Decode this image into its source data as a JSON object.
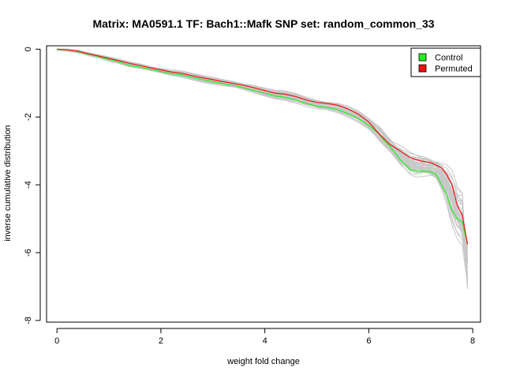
{
  "chart_data": {
    "type": "line",
    "title": "Matrix: MA0591.1 TF: Bach1::Mafk SNP set: random_common_33",
    "xlabel": "weight fold change",
    "ylabel": "inverse cumulative distribution",
    "xlim": [
      -0.2,
      8.15
    ],
    "ylim": [
      -8.05,
      0.1
    ],
    "xticks": [
      0,
      2,
      4,
      6,
      8
    ],
    "yticks": [
      0,
      -2,
      -4,
      -6,
      -8
    ],
    "grid": false,
    "legend": {
      "position": "top-right",
      "entries": [
        {
          "label": "Control",
          "color": "#22ee22"
        },
        {
          "label": "Permuted",
          "color": "#ee1111"
        }
      ]
    },
    "colors": {
      "background_lines": "#c8c8c8",
      "control": "#22ee22",
      "permuted": "#ee1111"
    },
    "series": [
      {
        "name": "Control",
        "x": [
          0.0,
          0.2,
          0.4,
          0.6,
          0.8,
          1.0,
          1.2,
          1.4,
          1.6,
          1.8,
          2.0,
          2.2,
          2.4,
          2.6,
          2.8,
          3.0,
          3.2,
          3.4,
          3.6,
          3.8,
          4.0,
          4.2,
          4.4,
          4.6,
          4.8,
          5.0,
          5.2,
          5.4,
          5.6,
          5.8,
          6.0,
          6.2,
          6.3,
          6.4,
          6.5,
          6.6,
          6.7,
          6.8,
          6.9,
          7.0,
          7.1,
          7.2,
          7.3,
          7.4,
          7.5,
          7.6,
          7.7,
          7.8,
          7.9
        ],
        "y": [
          0.0,
          -0.02,
          -0.07,
          -0.15,
          -0.22,
          -0.3,
          -0.38,
          -0.48,
          -0.53,
          -0.6,
          -0.66,
          -0.72,
          -0.76,
          -0.83,
          -0.9,
          -0.96,
          -1.02,
          -1.07,
          -1.14,
          -1.22,
          -1.3,
          -1.38,
          -1.42,
          -1.5,
          -1.6,
          -1.68,
          -1.72,
          -1.78,
          -1.9,
          -2.05,
          -2.25,
          -2.5,
          -2.7,
          -2.85,
          -3.05,
          -3.25,
          -3.4,
          -3.55,
          -3.6,
          -3.6,
          -3.6,
          -3.62,
          -3.7,
          -4.0,
          -4.3,
          -4.75,
          -5.0,
          -5.1,
          -5.75
        ]
      },
      {
        "name": "Permuted",
        "x": [
          0.0,
          0.2,
          0.4,
          0.6,
          0.8,
          1.0,
          1.2,
          1.4,
          1.6,
          1.8,
          2.0,
          2.2,
          2.4,
          2.6,
          2.8,
          3.0,
          3.2,
          3.4,
          3.6,
          3.8,
          4.0,
          4.2,
          4.4,
          4.6,
          4.8,
          5.0,
          5.2,
          5.4,
          5.6,
          5.8,
          6.0,
          6.2,
          6.3,
          6.4,
          6.5,
          6.6,
          6.7,
          6.8,
          6.9,
          7.0,
          7.1,
          7.2,
          7.3,
          7.4,
          7.5,
          7.6,
          7.7,
          7.8,
          7.9
        ],
        "y": [
          0.0,
          -0.02,
          -0.06,
          -0.13,
          -0.2,
          -0.27,
          -0.34,
          -0.42,
          -0.48,
          -0.55,
          -0.61,
          -0.67,
          -0.71,
          -0.78,
          -0.84,
          -0.9,
          -0.96,
          -1.01,
          -1.07,
          -1.14,
          -1.22,
          -1.3,
          -1.33,
          -1.4,
          -1.5,
          -1.57,
          -1.6,
          -1.65,
          -1.76,
          -1.92,
          -2.15,
          -2.5,
          -2.65,
          -2.8,
          -2.9,
          -3.0,
          -3.1,
          -3.2,
          -3.25,
          -3.3,
          -3.32,
          -3.35,
          -3.42,
          -3.5,
          -3.7,
          -4.0,
          -4.6,
          -4.9,
          -5.75
        ]
      }
    ]
  }
}
